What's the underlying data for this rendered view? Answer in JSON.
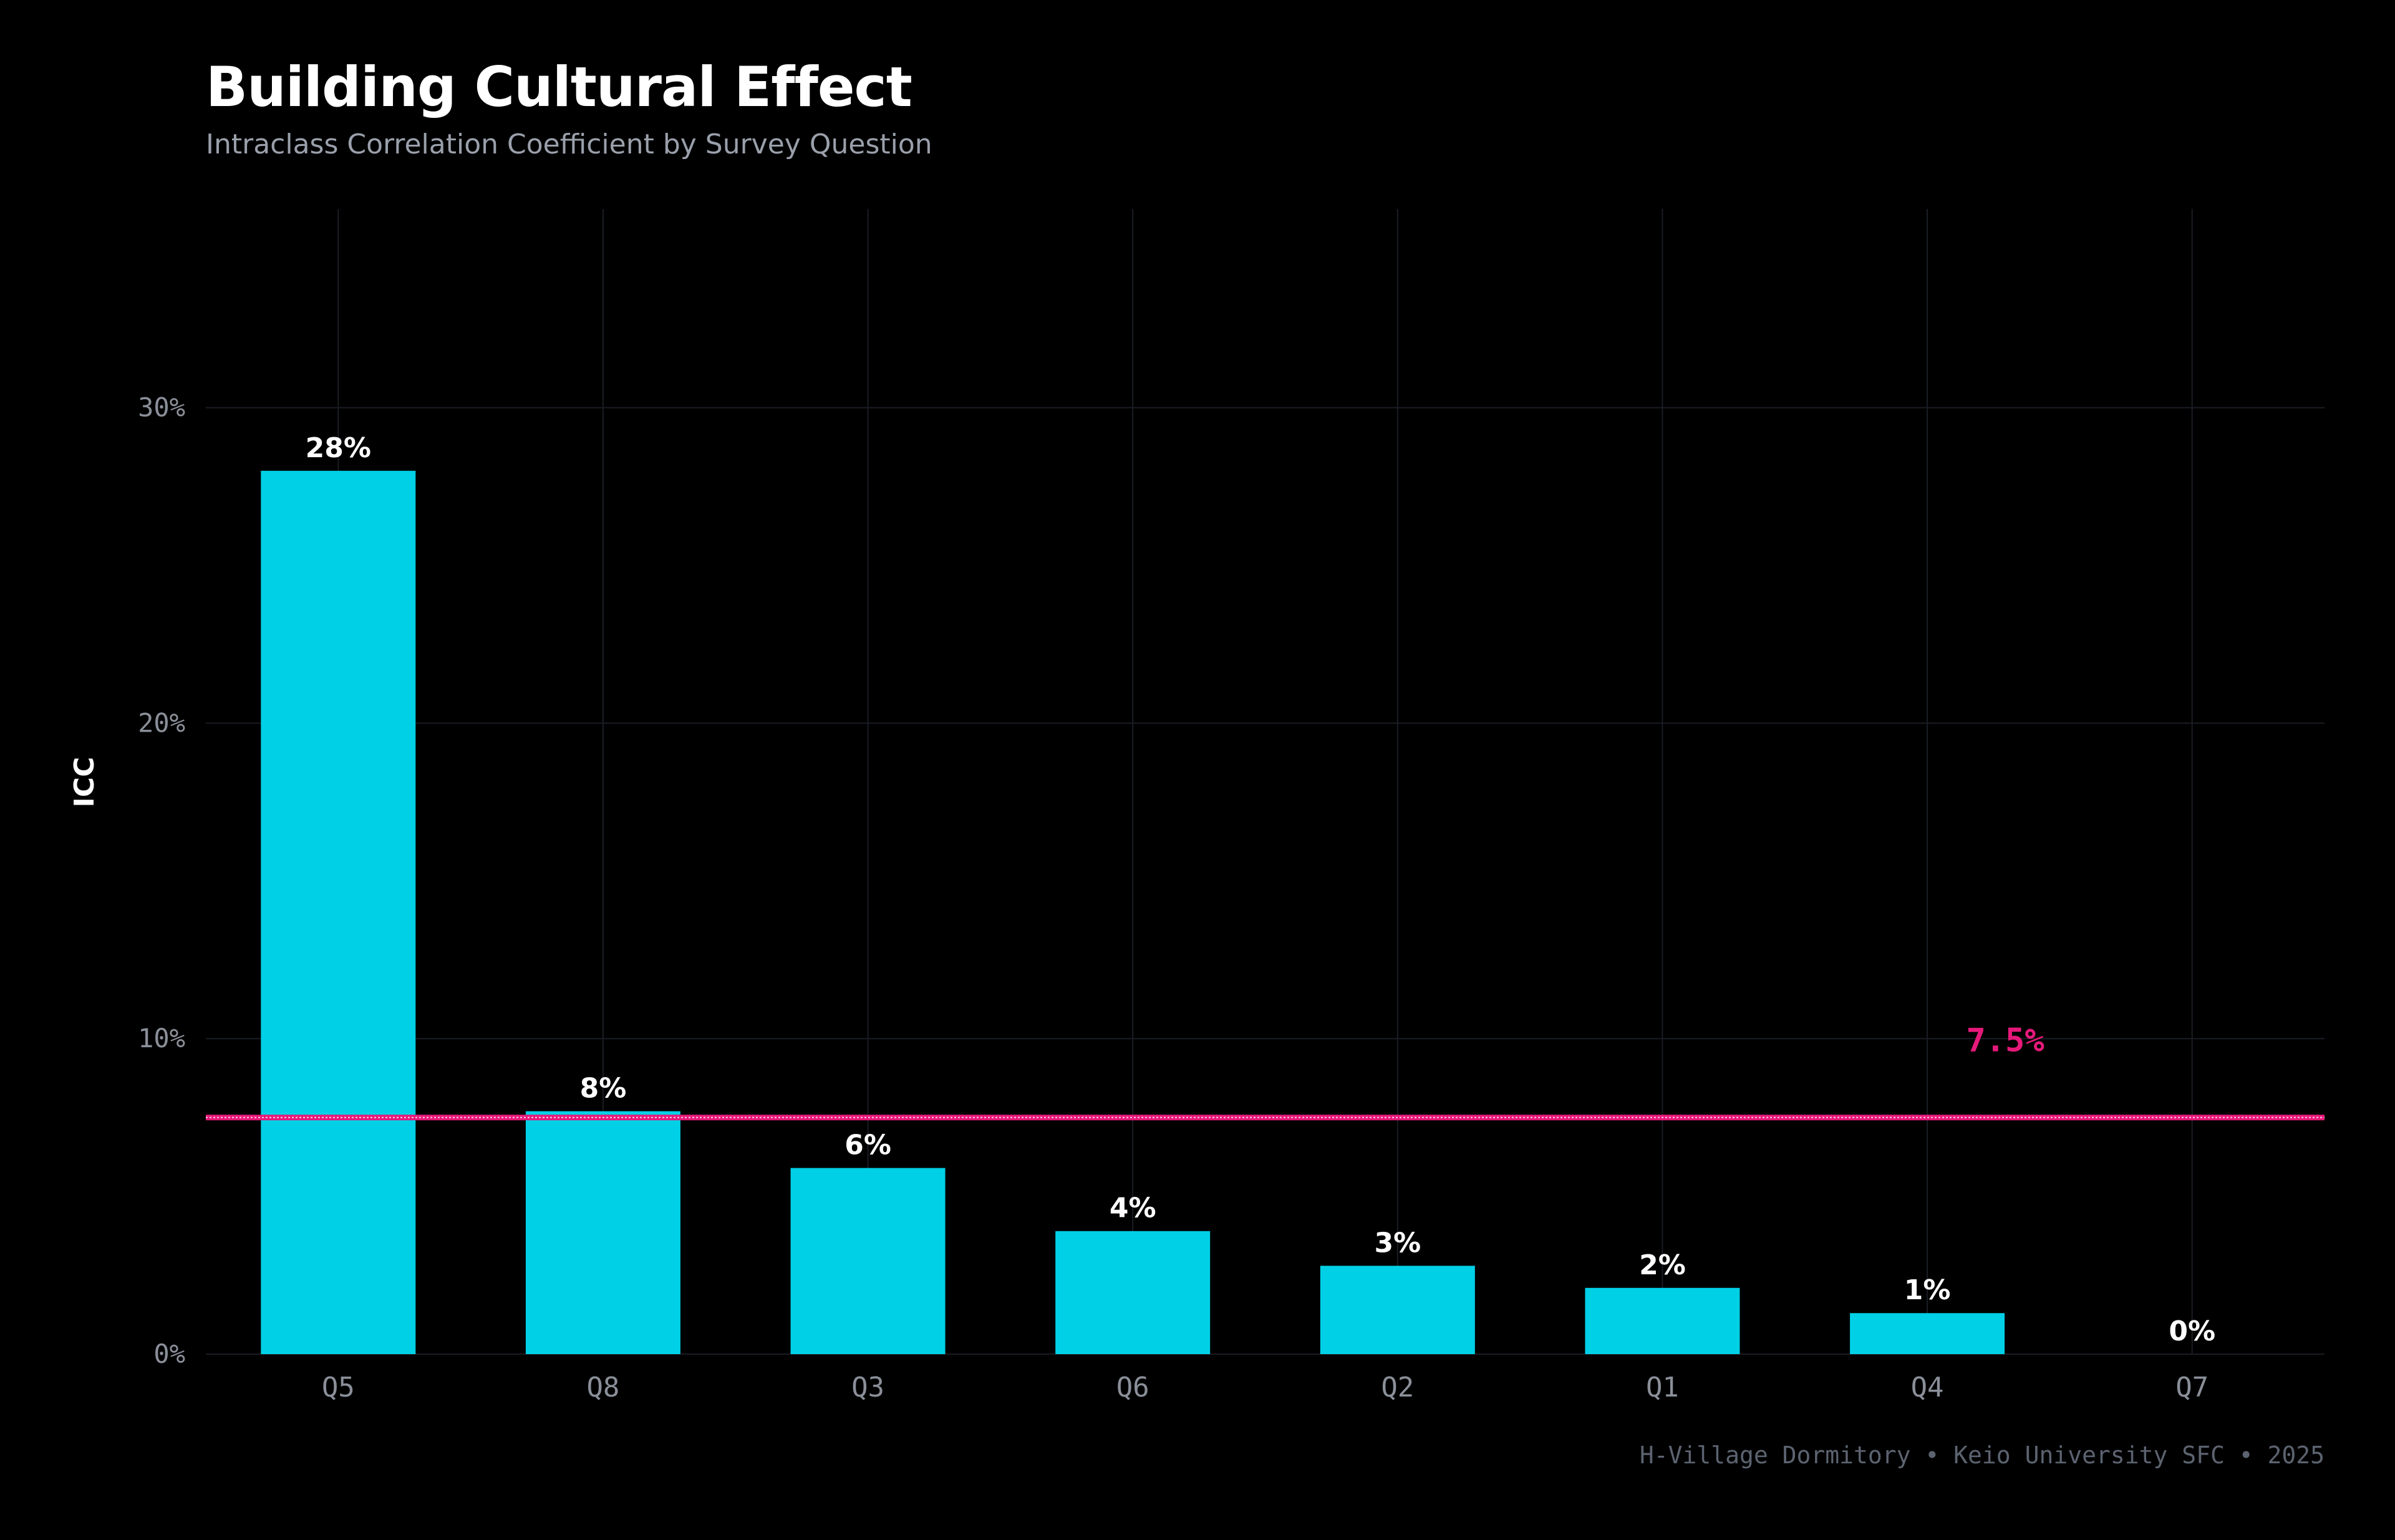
{
  "header": {
    "title": "Building Cultural Effect",
    "subtitle": "Intraclass Correlation Coefficient by Survey Question"
  },
  "footer": {
    "text": "H-Village Dormitory • Keio University SFC • 2025"
  },
  "colors": {
    "background": "#000000",
    "bar": "#00d0e6",
    "reference_line": "#e6197a",
    "grid": "#1a1d24",
    "tick_label": "#8a8f99",
    "bar_label": "#ffffff"
  },
  "chart_data": {
    "type": "bar",
    "ylabel": "ICC",
    "categories": [
      "Q5",
      "Q8",
      "Q3",
      "Q6",
      "Q2",
      "Q1",
      "Q4",
      "Q7"
    ],
    "values": [
      28,
      7.7,
      5.9,
      3.9,
      2.8,
      2.1,
      1.3,
      0
    ],
    "value_labels": [
      "28%",
      "8%",
      "6%",
      "4%",
      "3%",
      "2%",
      "1%",
      "0%"
    ],
    "ylim": [
      0,
      36.3
    ],
    "yticks": [
      0,
      10,
      20,
      30
    ],
    "ytick_labels": [
      "0%",
      "10%",
      "20%",
      "30%"
    ],
    "grid": true,
    "reference_line": {
      "value": 7.5,
      "label": "7.5%"
    }
  }
}
